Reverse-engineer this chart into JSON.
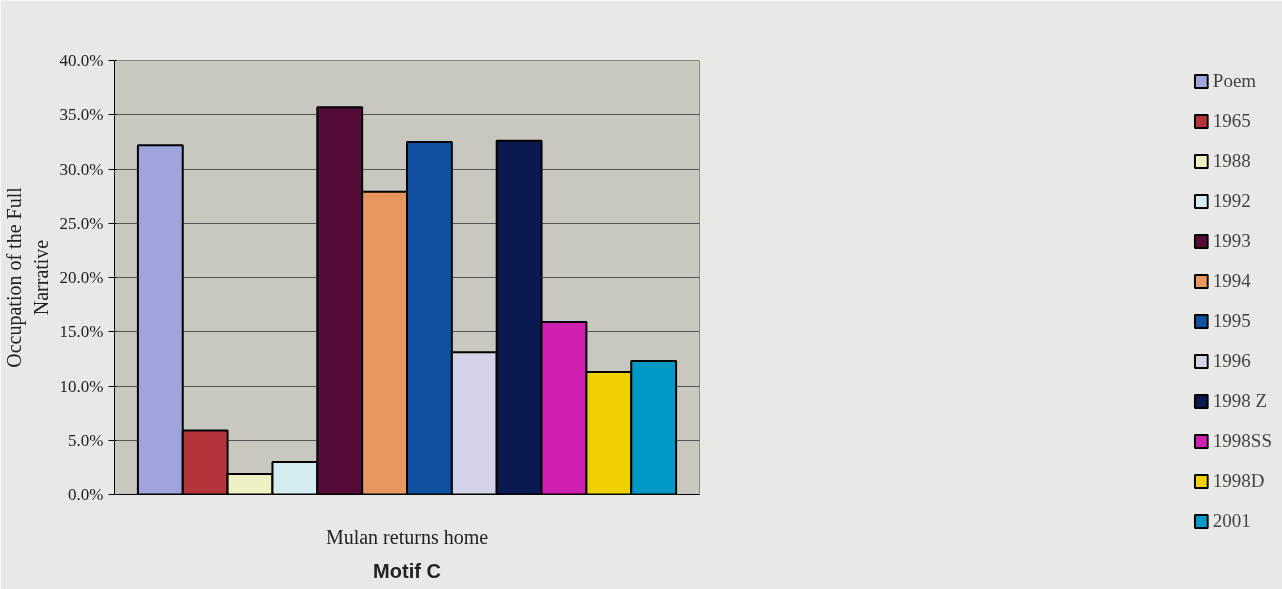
{
  "chart_data": {
    "type": "bar",
    "title": "Motif C",
    "ylabel": "Occupation of the Full Narrative",
    "categories": [
      "Mulan returns home"
    ],
    "series": [
      {
        "name": "Poem",
        "color": "#a0a4dc",
        "values": [
          32.2
        ]
      },
      {
        "name": "1965",
        "color": "#b3343a",
        "values": [
          5.9
        ]
      },
      {
        "name": "1988",
        "color": "#eef0c4",
        "values": [
          1.9
        ]
      },
      {
        "name": "1992",
        "color": "#d2ecf0",
        "values": [
          3.0
        ]
      },
      {
        "name": "1993",
        "color": "#560c38",
        "values": [
          35.7
        ]
      },
      {
        "name": "1994",
        "color": "#e8985e",
        "values": [
          27.9
        ]
      },
      {
        "name": "1995",
        "color": "#0f50a0",
        "values": [
          32.5
        ]
      },
      {
        "name": "1996",
        "color": "#d2d2e8",
        "values": [
          13.1
        ]
      },
      {
        "name": "1998 Z",
        "color": "#0a1a50",
        "values": [
          32.6
        ]
      },
      {
        "name": "1998SS",
        "color": "#d020b0",
        "values": [
          15.9
        ]
      },
      {
        "name": "1998D",
        "color": "#f0d000",
        "values": [
          11.3
        ]
      },
      {
        "name": "2001",
        "color": "#0098c4",
        "values": [
          12.3
        ]
      }
    ],
    "ylim": [
      0,
      40
    ],
    "yticks": [
      {
        "value": 0,
        "label": "0.0%"
      },
      {
        "value": 5,
        "label": "5.0%"
      },
      {
        "value": 10,
        "label": "10.0%"
      },
      {
        "value": 15,
        "label": "15.0%"
      },
      {
        "value": 20,
        "label": "20.0%"
      },
      {
        "value": 25,
        "label": "25.0%"
      },
      {
        "value": 30,
        "label": "30.0%"
      },
      {
        "value": 35,
        "label": "35.0%"
      },
      {
        "value": 40,
        "label": "40.0%"
      }
    ],
    "grid": "y",
    "legend": "right"
  }
}
